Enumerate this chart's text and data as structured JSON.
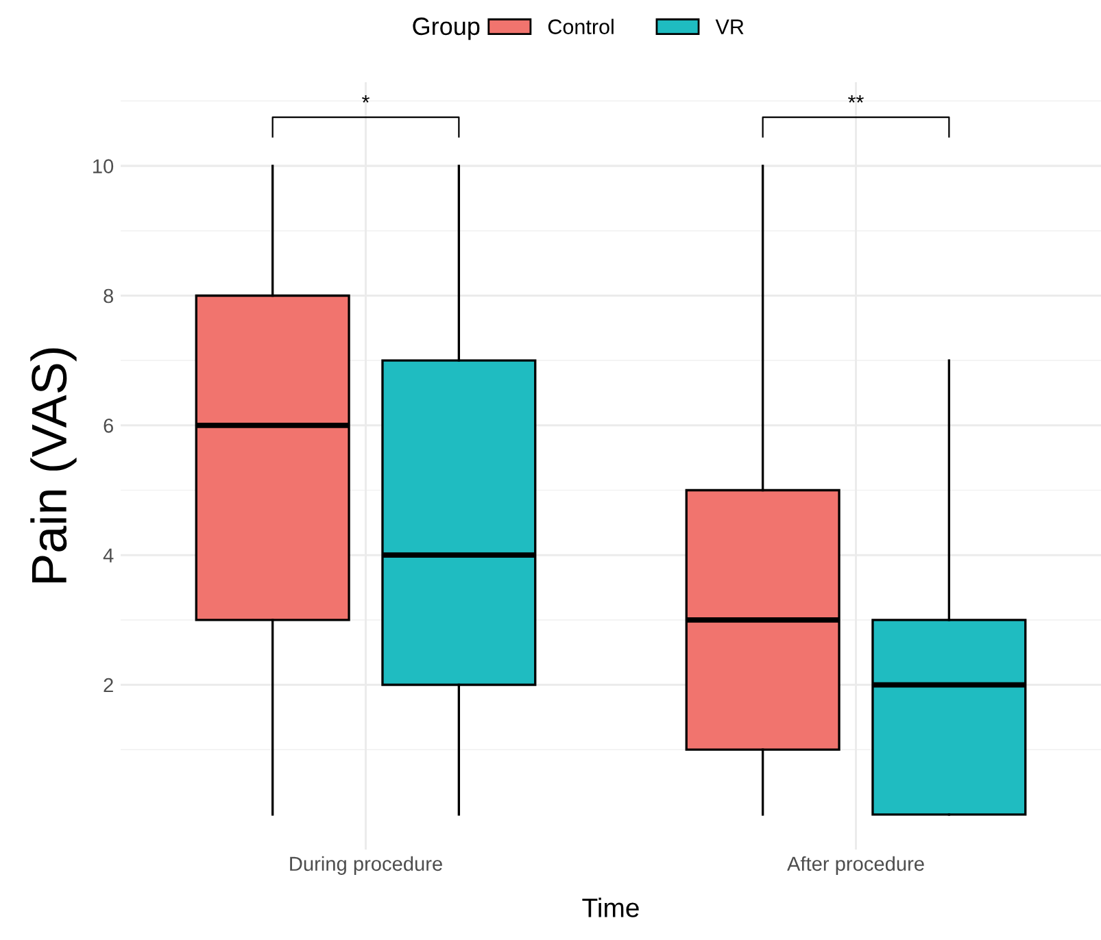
{
  "chart_data": {
    "type": "box",
    "xlabel": "Time",
    "ylabel": "Pain (VAS)",
    "legend_title": "Group",
    "legend": "top",
    "grid": true,
    "categories": [
      "During procedure",
      "After procedure"
    ],
    "ylim": [
      -0.54,
      11.29
    ],
    "yticks": [
      2,
      4,
      6,
      8,
      10
    ],
    "series": [
      {
        "name": "Control",
        "color": "#f1746e",
        "boxes": [
          {
            "low": 0,
            "q1": 3,
            "median": 6,
            "q3": 8,
            "high": 10
          },
          {
            "low": 0,
            "q1": 1,
            "median": 3,
            "q3": 5,
            "high": 10
          }
        ]
      },
      {
        "name": "VR",
        "color": "#1fbcc1",
        "boxes": [
          {
            "low": 0,
            "q1": 2,
            "median": 4,
            "q3": 7,
            "high": 10
          },
          {
            "low": 0,
            "q1": 0,
            "median": 2,
            "q3": 3,
            "high": 7
          }
        ]
      }
    ],
    "annotations": [
      "*",
      "**"
    ]
  }
}
